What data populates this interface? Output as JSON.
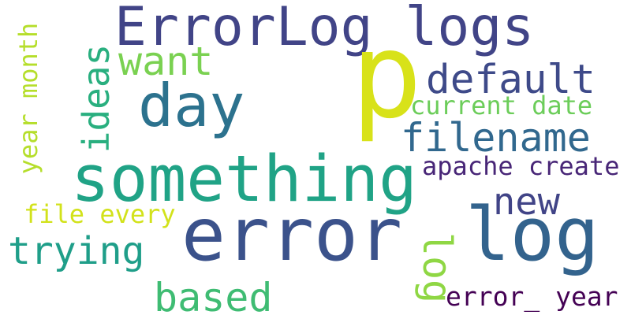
{
  "words": [
    "ErrorLog logs",
    "p",
    "day",
    "want",
    "ideas",
    "default",
    "current date",
    "filename",
    "something",
    "year month",
    "apache create",
    "new",
    "file every",
    "error",
    "log",
    "trying",
    "log",
    "based",
    "error_ year"
  ]
}
